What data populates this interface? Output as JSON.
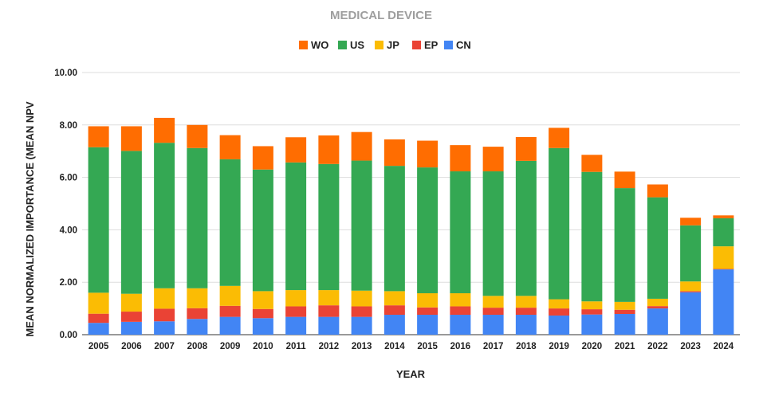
{
  "chart_data": {
    "type": "bar",
    "stacked": true,
    "title": "MEDICAL DEVICE",
    "xlabel": "YEAR",
    "ylabel": "MEAN NORMALIZED IMPORTANCE (MEAN NPV",
    "ylim": [
      0,
      10
    ],
    "yticks": [
      "0.00",
      "2.00",
      "4.00",
      "6.00",
      "8.00",
      "10.00"
    ],
    "grid": true,
    "legend_position": "top",
    "categories": [
      "2005",
      "2006",
      "2007",
      "2008",
      "2009",
      "2010",
      "2011",
      "2012",
      "2013",
      "2014",
      "2015",
      "2016",
      "2017",
      "2018",
      "2019",
      "2020",
      "2021",
      "2022",
      "2023",
      "2024"
    ],
    "series": [
      {
        "name": "CN",
        "color": "#4285f4",
        "values": [
          0.45,
          0.49,
          0.51,
          0.6,
          0.68,
          0.63,
          0.68,
          0.68,
          0.68,
          0.76,
          0.76,
          0.76,
          0.76,
          0.76,
          0.73,
          0.77,
          0.79,
          1.0,
          1.62,
          2.49
        ]
      },
      {
        "name": "EP",
        "color": "#ea4335",
        "values": [
          0.35,
          0.39,
          0.48,
          0.41,
          0.42,
          0.35,
          0.4,
          0.44,
          0.4,
          0.36,
          0.28,
          0.32,
          0.27,
          0.27,
          0.27,
          0.2,
          0.16,
          0.09,
          0.04,
          0.02
        ]
      },
      {
        "name": "JP",
        "color": "#fbbc04",
        "values": [
          0.8,
          0.68,
          0.78,
          0.76,
          0.76,
          0.68,
          0.62,
          0.58,
          0.6,
          0.54,
          0.54,
          0.5,
          0.45,
          0.45,
          0.35,
          0.3,
          0.3,
          0.28,
          0.37,
          0.86
        ]
      },
      {
        "name": "US",
        "color": "#34a853",
        "values": [
          5.55,
          5.45,
          5.55,
          5.35,
          4.83,
          4.64,
          4.87,
          4.81,
          4.96,
          4.78,
          4.8,
          4.65,
          4.75,
          5.15,
          5.77,
          4.94,
          4.34,
          3.87,
          2.14,
          1.07
        ]
      },
      {
        "name": "WO",
        "color": "#ff6d01",
        "values": [
          0.8,
          0.94,
          0.95,
          0.88,
          0.92,
          0.89,
          0.96,
          1.09,
          1.09,
          1.01,
          1.02,
          1.0,
          0.94,
          0.91,
          0.77,
          0.65,
          0.63,
          0.49,
          0.29,
          0.11
        ]
      }
    ],
    "legend_order": [
      "WO",
      "US",
      "JP",
      "EP",
      "CN"
    ]
  }
}
